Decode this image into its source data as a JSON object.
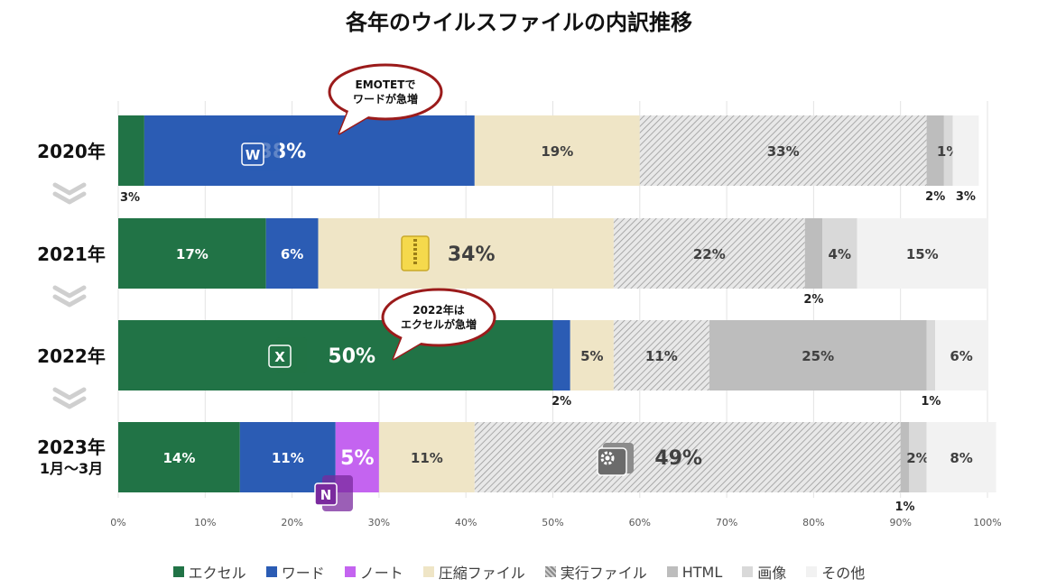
{
  "chart_data": {
    "type": "bar",
    "orientation": "horizontal",
    "stacked": true,
    "title": "各年のウイルスファイルの内訳推移",
    "xlim": [
      0,
      100
    ],
    "x_ticks": [
      "0%",
      "10%",
      "20%",
      "30%",
      "40%",
      "50%",
      "60%",
      "70%",
      "80%",
      "90%",
      "100%"
    ],
    "grid": true,
    "legend_position": "bottom",
    "categories": [
      {
        "id": "y2020",
        "label": [
          "2020年"
        ]
      },
      {
        "id": "y2021",
        "label": [
          "2021年"
        ]
      },
      {
        "id": "y2022",
        "label": [
          "2022年"
        ]
      },
      {
        "id": "y2023",
        "label": [
          "2023年",
          "1月～3月"
        ]
      }
    ],
    "series": [
      {
        "name": "エクセル",
        "color": "#217346",
        "pattern": "solid",
        "values": [
          3,
          17,
          50,
          14
        ],
        "labels": [
          "3%",
          "17%",
          "50%",
          "14%"
        ]
      },
      {
        "name": "ワード",
        "color": "#2b5cb4",
        "pattern": "solid",
        "values": [
          38,
          6,
          2,
          11
        ],
        "labels": [
          "38%",
          "6%",
          "2%",
          "11%"
        ]
      },
      {
        "name": "ノート",
        "color": "#c464f0",
        "pattern": "solid",
        "values": [
          0,
          0,
          0,
          5
        ],
        "labels": [
          "",
          "",
          "",
          "5%"
        ]
      },
      {
        "name": "圧縮ファイル",
        "color": "#efe5c6",
        "pattern": "solid",
        "values": [
          19,
          34,
          5,
          11
        ],
        "labels": [
          "19%",
          "34%",
          "5%",
          "11%"
        ]
      },
      {
        "name": "実行ファイル",
        "color": "#b8b8b8",
        "pattern": "hatch",
        "values": [
          33,
          22,
          11,
          49
        ],
        "labels": [
          "33%",
          "22%",
          "11%",
          "49%"
        ]
      },
      {
        "name": "HTML",
        "color": "#bdbdbd",
        "pattern": "solid",
        "values": [
          2,
          2,
          25,
          1
        ],
        "labels": [
          "2%",
          "2%",
          "25%",
          "1%"
        ]
      },
      {
        "name": "画像",
        "color": "#d9d9d9",
        "pattern": "solid",
        "values": [
          1,
          4,
          1,
          2
        ],
        "labels": [
          "1%",
          "4%",
          "1%",
          "2%"
        ]
      },
      {
        "name": "その他",
        "color": "#f2f2f2",
        "pattern": "solid",
        "values": [
          3,
          15,
          6,
          8
        ],
        "labels": [
          "3%",
          "15%",
          "6%",
          "8%"
        ]
      }
    ],
    "callouts": [
      {
        "category": 0,
        "lines": [
          "EMOTETで",
          "ワードが急増"
        ]
      },
      {
        "category": 2,
        "lines": [
          "2022年は",
          "エクセルが急増"
        ]
      }
    ],
    "icons": [
      {
        "category": 0,
        "name": "word-icon",
        "letter": "W",
        "color": "#2b5cb4"
      },
      {
        "category": 1,
        "name": "zip-icon",
        "letter": "",
        "color": "#f5d94c"
      },
      {
        "category": 2,
        "name": "excel-icon",
        "letter": "X",
        "color": "#217346"
      },
      {
        "category": 3,
        "name": "exe-gear-icon",
        "letter": "",
        "color": "#6b6b6b"
      },
      {
        "category": 3,
        "name": "onenote-icon",
        "letter": "N",
        "color": "#7a2a9e"
      }
    ]
  }
}
